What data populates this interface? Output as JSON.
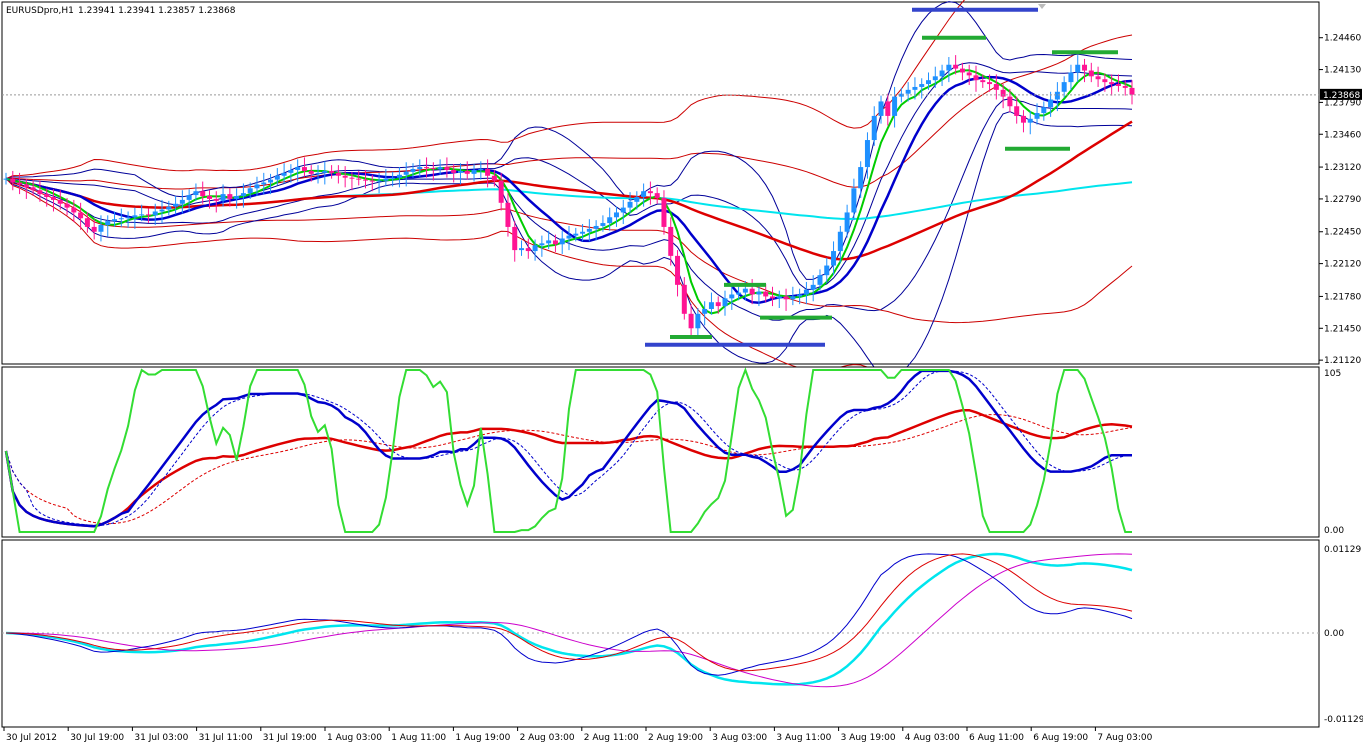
{
  "header": {
    "symbol_label": "EURUSDpro,H1",
    "ohlc_text": "1.23941 1.23941 1.23857 1.23868"
  },
  "colors": {
    "bull_candle": "#1e90ff",
    "bear_candle": "#ff1493",
    "fast_ma": "#00cc00",
    "mid_ma": "#0000cc",
    "slow_ma": "#dd0000",
    "long_ma": "#00e5ee",
    "band_blue": "#000099",
    "band_red": "#cc0000",
    "level_blue": "#3344cc",
    "level_green": "#22aa33",
    "osc_green": "#33dd33",
    "osc_blue": "#0000cc",
    "osc_red": "#dd0000",
    "macd_cyan": "#00e5ee",
    "macd_magenta": "#cc00cc"
  },
  "chart_data": [
    {
      "type": "candlestick",
      "title": "EURUSDpro,H1",
      "price_ticks": [
        "1.24460",
        "1.24130",
        "1.23790",
        "1.23460",
        "1.23120",
        "1.22790",
        "1.22450",
        "1.22120",
        "1.21780",
        "1.21450",
        "1.21120"
      ],
      "price_tick_values": [
        1.2446,
        1.2413,
        1.2379,
        1.2346,
        1.2312,
        1.2279,
        1.2245,
        1.2212,
        1.2178,
        1.2145,
        1.2112
      ],
      "current_price_label": "1.23868",
      "current_price": 1.23868,
      "ylim": [
        1.2108,
        1.2483
      ],
      "time_labels": [
        "30 Jul 2012",
        "30 Jul 19:00",
        "31 Jul 03:00",
        "31 Jul 11:00",
        "31 Jul 19:00",
        "1 Aug 03:00",
        "1 Aug 11:00",
        "1 Aug 19:00",
        "2 Aug 03:00",
        "2 Aug 11:00",
        "2 Aug 19:00",
        "3 Aug 03:00",
        "3 Aug 11:00",
        "3 Aug 19:00",
        "4 Aug 03:00",
        "6 Aug 11:00",
        "6 Aug 19:00",
        "7 Aug 03:00"
      ],
      "closes": [
        1.23,
        1.2296,
        1.2294,
        1.2291,
        1.2288,
        1.2284,
        1.2281,
        1.2278,
        1.2274,
        1.227,
        1.2265,
        1.2259,
        1.225,
        1.2245,
        1.2252,
        1.2256,
        1.2258,
        1.2259,
        1.226,
        1.2262,
        1.2263,
        1.2262,
        1.2266,
        1.2268,
        1.2271,
        1.2274,
        1.2278,
        1.2283,
        1.2287,
        1.2282,
        1.2279,
        1.2277,
        1.2284,
        1.2279,
        1.2282,
        1.2285,
        1.229,
        1.2294,
        1.2296,
        1.2299,
        1.2303,
        1.2306,
        1.2309,
        1.2312,
        1.2308,
        1.2305,
        1.2306,
        1.2308,
        1.2306,
        1.2303,
        1.2301,
        1.23,
        1.2299,
        1.2298,
        1.2297,
        1.2298,
        1.23,
        1.2301,
        1.2304,
        1.2307,
        1.231,
        1.2312,
        1.2311,
        1.231,
        1.2312,
        1.2309,
        1.2306,
        1.2308,
        1.2305,
        1.2309,
        1.231,
        1.2303,
        1.2298,
        1.2275,
        1.225,
        1.2226,
        1.2228,
        1.2225,
        1.2231,
        1.2233,
        1.2236,
        1.2232,
        1.2238,
        1.2241,
        1.2243,
        1.2245,
        1.2248,
        1.2251,
        1.2254,
        1.226,
        1.2265,
        1.227,
        1.2276,
        1.2281,
        1.2287,
        1.2285,
        1.228,
        1.225,
        1.222,
        1.219,
        1.216,
        1.2145,
        1.216,
        1.2165,
        1.2172,
        1.2168,
        1.2176,
        1.218,
        1.2182,
        1.2186,
        1.218,
        1.2183,
        1.2178,
        1.2176,
        1.2178,
        1.2175,
        1.2178,
        1.218,
        1.2185,
        1.219,
        1.22,
        1.221,
        1.2225,
        1.2245,
        1.2265,
        1.229,
        1.2312,
        1.234,
        1.2365,
        1.238,
        1.2365,
        1.2385,
        1.2388,
        1.2392,
        1.2395,
        1.2398,
        1.2402,
        1.2406,
        1.2412,
        1.2418,
        1.2414,
        1.241,
        1.2407,
        1.2402,
        1.24,
        1.2398,
        1.2392,
        1.2385,
        1.2375,
        1.2365,
        1.2358,
        1.2362,
        1.2368,
        1.2374,
        1.2382,
        1.239,
        1.24,
        1.241,
        1.2418,
        1.2412,
        1.2406,
        1.2403,
        1.24,
        1.2398,
        1.2396,
        1.2394,
        1.2387
      ]
    },
    {
      "type": "line",
      "title": "",
      "ticks": [
        "105",
        "0.00"
      ],
      "ylim": [
        -5,
        105
      ]
    },
    {
      "type": "line",
      "title": "",
      "ticks": [
        "0.01129",
        "0.00",
        "-0.01129"
      ],
      "ylim": [
        -0.01129,
        0.01129
      ]
    }
  ]
}
